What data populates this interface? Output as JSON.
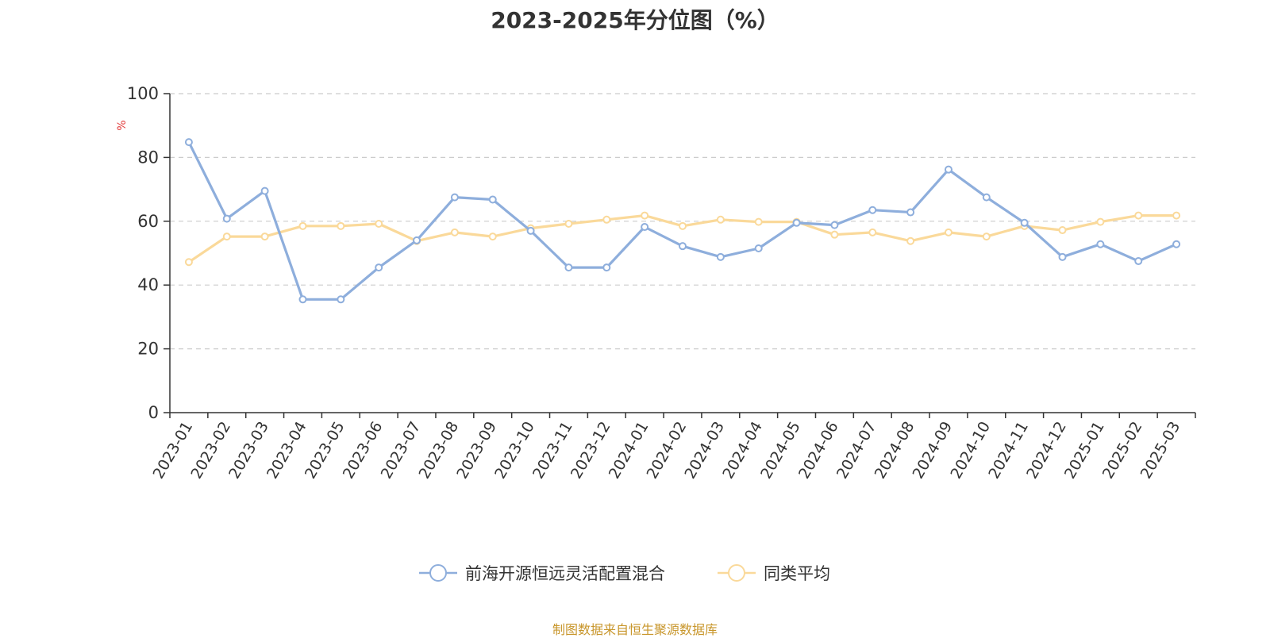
{
  "chart_data": {
    "type": "line",
    "title": "2023-2025年分位图（%）",
    "ylabel": "%",
    "xlabel": "",
    "ylim": [
      0,
      100
    ],
    "yticks": [
      0,
      20,
      40,
      60,
      80,
      100
    ],
    "grid": "horizontal dashed",
    "legend_position": "bottom-center",
    "categories": [
      "2023-01",
      "2023-02",
      "2023-03",
      "2023-04",
      "2023-05",
      "2023-06",
      "2023-07",
      "2023-08",
      "2023-09",
      "2023-10",
      "2023-11",
      "2023-12",
      "2024-01",
      "2024-02",
      "2024-03",
      "2024-04",
      "2024-05",
      "2024-06",
      "2024-07",
      "2024-08",
      "2024-09",
      "2024-10",
      "2024-11",
      "2024-12",
      "2025-01",
      "2025-02",
      "2025-03"
    ],
    "series": [
      {
        "name": "前海开源恒远灵活配置混合",
        "color": "#8eaedc",
        "values": [
          84.8,
          60.8,
          69.5,
          35.5,
          35.5,
          45.5,
          54.0,
          67.5,
          66.8,
          57.0,
          45.5,
          45.5,
          58.2,
          52.2,
          48.8,
          51.5,
          59.5,
          58.8,
          63.5,
          62.8,
          76.2,
          67.5,
          59.5,
          48.8,
          52.8,
          47.5,
          52.8
        ]
      },
      {
        "name": "同类平均",
        "color": "#fad99a",
        "values": [
          47.2,
          55.2,
          55.2,
          58.5,
          58.5,
          59.2,
          53.8,
          56.5,
          55.2,
          57.8,
          59.2,
          60.5,
          61.8,
          58.5,
          60.5,
          59.8,
          59.8,
          55.8,
          56.5,
          53.8,
          56.5,
          55.2,
          58.5,
          57.2,
          59.8,
          61.8,
          61.8
        ]
      }
    ],
    "footer": "制图数据来自恒生聚源数据库"
  }
}
